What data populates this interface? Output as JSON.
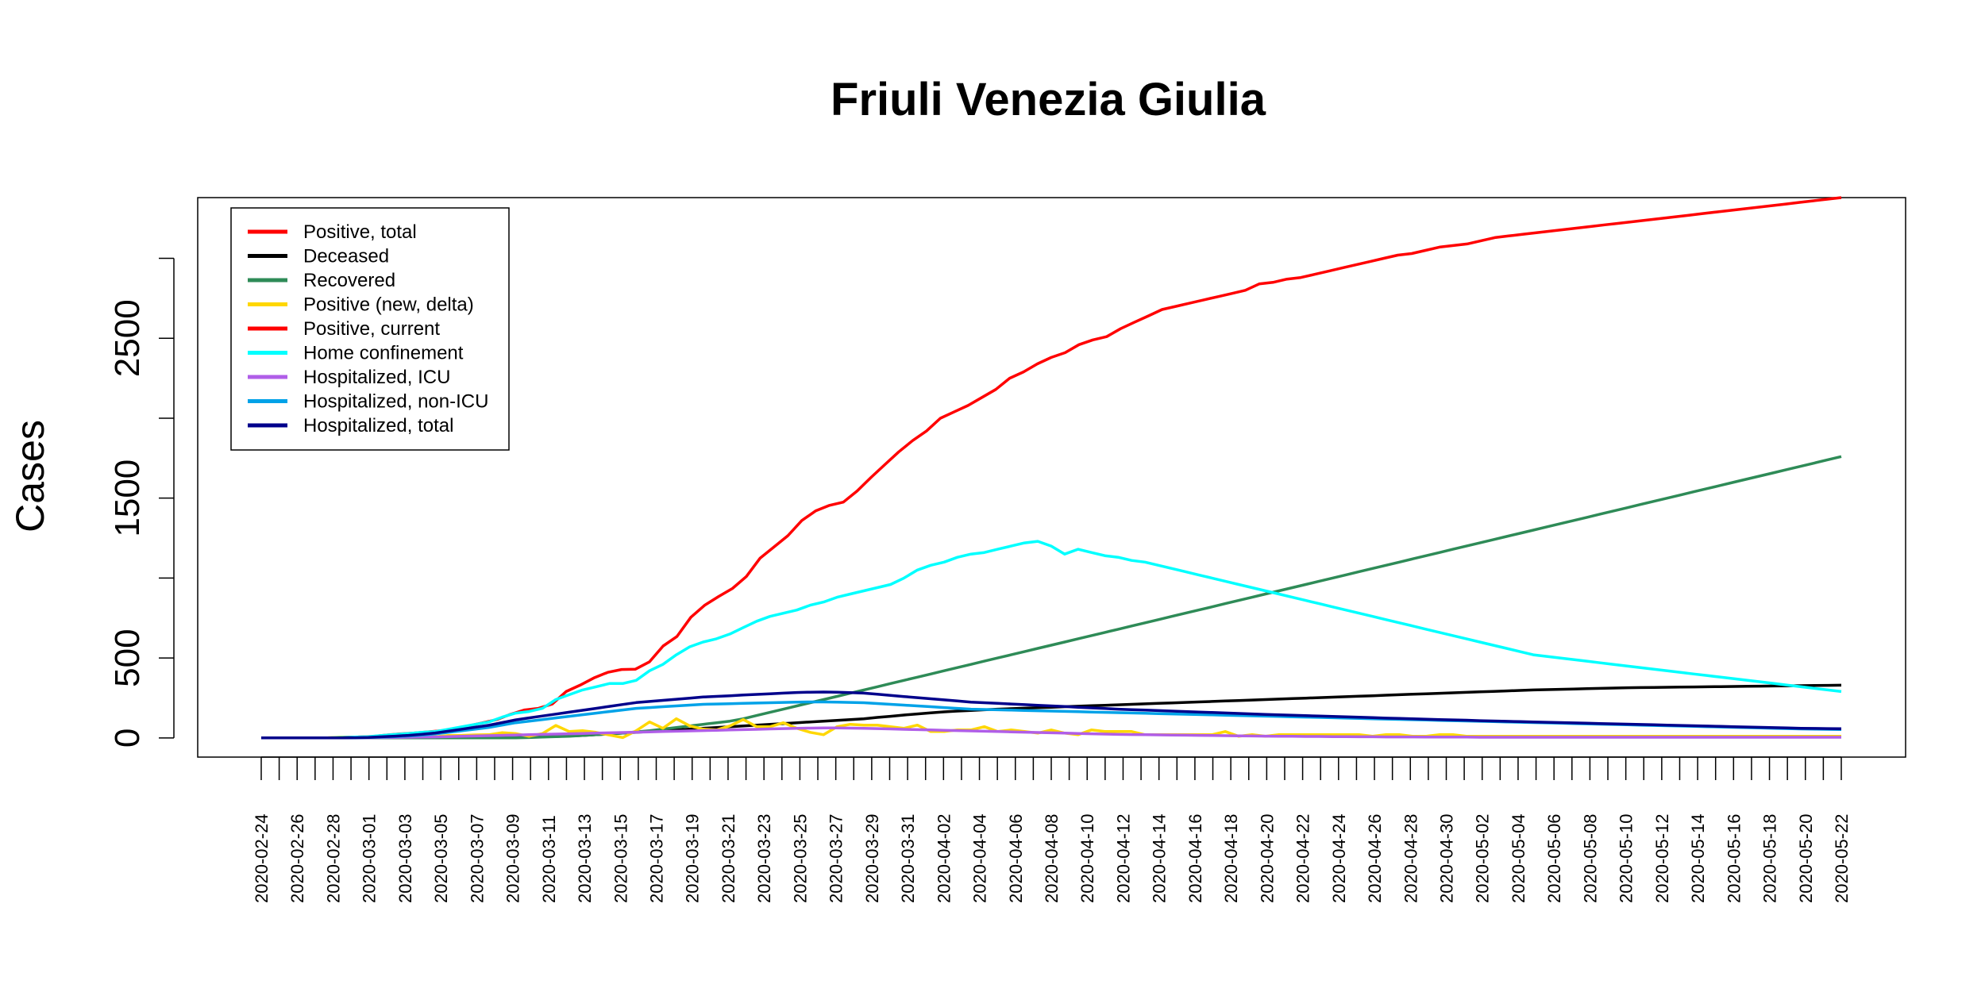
{
  "chart_data": {
    "type": "line",
    "title": "Friuli Venezia Giulia",
    "xlabel": "",
    "ylabel": "Cases",
    "ylim": [
      -120,
      3380
    ],
    "y_ticks": [
      0,
      500,
      1000,
      1500,
      2000,
      2500,
      3000
    ],
    "y_tick_labels": [
      "0",
      "500",
      "",
      "1500",
      "",
      "2500",
      ""
    ],
    "grid": false,
    "legend_position": "top-left",
    "x_start": "2020-02-24",
    "x_tick_labels": [
      "2020-02-24",
      "2020-02-26",
      "2020-02-28",
      "2020-03-01",
      "2020-03-03",
      "2020-03-05",
      "2020-03-07",
      "2020-03-09",
      "2020-03-11",
      "2020-03-13",
      "2020-03-15",
      "2020-03-17",
      "2020-03-19",
      "2020-03-21",
      "2020-03-23",
      "2020-03-25",
      "2020-03-27",
      "2020-03-29",
      "2020-03-31",
      "2020-04-02",
      "2020-04-04",
      "2020-04-06",
      "2020-04-08",
      "2020-04-10",
      "2020-04-12",
      "2020-04-14",
      "2020-04-16",
      "2020-04-18",
      "2020-04-20",
      "2020-04-22",
      "2020-04-24",
      "2020-04-26",
      "2020-04-28",
      "2020-04-30",
      "2020-05-02",
      "2020-05-04",
      "2020-05-06",
      "2020-05-08",
      "2020-05-10",
      "2020-05-12",
      "2020-05-14",
      "2020-05-16",
      "2020-05-18",
      "2020-05-20",
      "2020-05-22"
    ],
    "series": [
      {
        "name": "Positive, total",
        "color": "#ff0000",
        "values": [
          0,
          0,
          0,
          0,
          0,
          0,
          5,
          6,
          9,
          18,
          25,
          30,
          38,
          45,
          60,
          76,
          95,
          115,
          148,
          175,
          185,
          212,
          290,
          330,
          375,
          410,
          428,
          430,
          475,
          575,
          635,
          755,
          830,
          885,
          935,
          1010,
          1125,
          1195,
          1265,
          1360,
          1420,
          1455,
          1475,
          1545,
          1630,
          1710,
          1790,
          1860,
          1920,
          2000,
          2040,
          2080,
          2130,
          2180,
          2250,
          2290,
          2340,
          2380,
          2410,
          2460,
          2490,
          2510,
          2560,
          2600,
          2640,
          2680,
          2700,
          2720,
          2740,
          2760,
          2780,
          2800,
          2840,
          2850,
          2870,
          2880,
          2900,
          2920,
          2940,
          2960,
          2980,
          3000,
          3020,
          3030,
          3050,
          3070,
          3080,
          3090,
          3110,
          3130,
          3140,
          3150,
          3160,
          3170,
          3180,
          3190,
          3200,
          3210,
          3220,
          3230,
          3240,
          3250,
          3260,
          3270,
          3280,
          3290,
          3300,
          3310,
          3320,
          3330,
          3340,
          3350,
          3360,
          3370,
          3380
        ]
      },
      {
        "name": "Deceased",
        "color": "#000000",
        "values": [
          0,
          0,
          0,
          0,
          0,
          0,
          0,
          0,
          0,
          0,
          0,
          0,
          0,
          0,
          0,
          0,
          0,
          1,
          2,
          3,
          5,
          7,
          9,
          12,
          15,
          20,
          25,
          30,
          35,
          40,
          45,
          50,
          55,
          60,
          65,
          70,
          75,
          80,
          85,
          90,
          95,
          100,
          105,
          110,
          115,
          120,
          128,
          135,
          143,
          150,
          157,
          163,
          168,
          172,
          176,
          180,
          183,
          186,
          189,
          192,
          195,
          198,
          201,
          204,
          207,
          210,
          213,
          216,
          219,
          222,
          225,
          228,
          231,
          234,
          237,
          240,
          243,
          246,
          249,
          252,
          255,
          258,
          261,
          264,
          267,
          270,
          273,
          276,
          279,
          282,
          285,
          288,
          291,
          294,
          297,
          300,
          302,
          304,
          306,
          308,
          310,
          312,
          314,
          315,
          316,
          317,
          318,
          319,
          320,
          321,
          322,
          323,
          324,
          325,
          326,
          327,
          328,
          329,
          330
        ]
      },
      {
        "name": "Recovered",
        "color": "#2e8b57",
        "values": [
          0,
          0,
          0,
          0,
          0,
          0,
          0,
          0,
          0,
          0,
          0,
          0,
          0,
          0,
          0,
          0,
          0,
          0,
          0,
          0,
          2,
          5,
          8,
          10,
          15,
          20,
          25,
          30,
          38,
          45,
          55,
          65,
          75,
          85,
          95,
          105,
          120,
          140,
          160,
          180,
          200,
          220,
          240,
          260,
          280,
          300,
          320,
          340,
          360,
          380,
          400,
          420,
          440,
          460,
          480,
          500,
          520,
          540,
          560,
          580,
          600,
          620,
          640,
          660,
          680,
          700,
          720,
          740,
          760,
          780,
          800,
          820,
          840,
          860,
          880,
          900,
          920,
          940,
          960,
          980,
          1000,
          1020,
          1040,
          1060,
          1080,
          1100,
          1120,
          1140,
          1160,
          1180,
          1200,
          1220,
          1240,
          1260,
          1280,
          1300,
          1320,
          1340,
          1360,
          1380,
          1400,
          1420,
          1440,
          1460,
          1480,
          1500,
          1520,
          1540,
          1560,
          1580,
          1600,
          1620,
          1640,
          1660,
          1680,
          1700,
          1720,
          1740,
          1760
        ]
      },
      {
        "name": "Positive (new, delta)",
        "color": "#ffd700",
        "values": [
          0,
          0,
          0,
          0,
          0,
          1,
          5,
          1,
          3,
          9,
          7,
          5,
          8,
          7,
          15,
          16,
          19,
          20,
          33,
          27,
          10,
          27,
          78,
          40,
          45,
          35,
          18,
          2,
          45,
          100,
          60,
          120,
          75,
          55,
          50,
          75,
          115,
          70,
          70,
          95,
          60,
          35,
          20,
          70,
          85,
          80,
          80,
          70,
          60,
          80,
          40,
          40,
          50,
          50,
          70,
          40,
          50,
          40,
          30,
          50,
          30,
          20,
          50,
          40,
          40,
          40,
          20,
          20,
          20,
          20,
          20,
          20,
          40,
          10,
          20,
          10,
          20,
          20,
          20,
          20,
          20,
          20,
          20,
          10,
          20,
          20,
          10,
          10,
          20,
          20,
          10,
          10,
          10,
          10,
          10,
          10,
          10,
          10,
          10,
          10,
          10,
          10,
          10,
          10,
          10,
          10,
          10,
          10,
          10,
          10,
          10,
          10,
          10,
          10,
          10,
          10,
          10,
          10,
          10
        ]
      },
      {
        "name": "Positive, current",
        "color": "#ff0000",
        "values": []
      },
      {
        "name": "Home confinement",
        "color": "#00ffff",
        "values": [
          0,
          0,
          0,
          0,
          0,
          0,
          3,
          5,
          8,
          15,
          22,
          28,
          35,
          40,
          55,
          70,
          85,
          100,
          130,
          155,
          165,
          185,
          240,
          270,
          300,
          320,
          340,
          340,
          360,
          420,
          460,
          520,
          570,
          600,
          620,
          650,
          690,
          730,
          760,
          780,
          800,
          830,
          850,
          880,
          900,
          920,
          940,
          960,
          1000,
          1050,
          1080,
          1100,
          1130,
          1150,
          1160,
          1180,
          1200,
          1220,
          1230,
          1200,
          1150,
          1180,
          1160,
          1140,
          1130,
          1110,
          1100,
          1080,
          1060,
          1040,
          1020,
          1000,
          980,
          960,
          940,
          920,
          900,
          880,
          860,
          840,
          820,
          800,
          780,
          760,
          740,
          720,
          700,
          680,
          660,
          640,
          620,
          600,
          580,
          560,
          540,
          520,
          510,
          500,
          490,
          480,
          470,
          460,
          450,
          440,
          430,
          420,
          410,
          400,
          390,
          380,
          370,
          360,
          350,
          340,
          330,
          320,
          310,
          300,
          290
        ]
      },
      {
        "name": "Hospitalized, ICU",
        "color": "#b05ee8",
        "values": [
          0,
          0,
          0,
          0,
          0,
          0,
          0,
          0,
          1,
          2,
          3,
          4,
          5,
          6,
          8,
          10,
          12,
          14,
          16,
          18,
          20,
          22,
          24,
          26,
          28,
          30,
          32,
          34,
          36,
          38,
          40,
          42,
          44,
          46,
          48,
          50,
          52,
          54,
          56,
          58,
          60,
          61,
          62,
          62,
          61,
          60,
          58,
          56,
          54,
          52,
          50,
          48,
          46,
          44,
          42,
          40,
          38,
          36,
          34,
          32,
          30,
          28,
          26,
          24,
          22,
          21,
          20,
          19,
          18,
          17,
          16,
          15,
          14,
          13,
          12,
          11,
          10,
          10,
          9,
          9,
          8,
          8,
          7,
          7,
          6,
          6,
          6,
          5,
          5,
          5,
          5,
          4,
          4,
          4,
          4,
          4,
          4,
          4,
          4,
          4,
          4,
          4,
          4,
          4,
          4,
          4,
          4,
          4,
          4,
          4,
          4,
          4,
          4,
          4,
          4,
          4,
          4,
          4,
          4
        ]
      },
      {
        "name": "Hospitalized, non-ICU",
        "color": "#00a2e8",
        "values": [
          0,
          0,
          0,
          0,
          0,
          0,
          0,
          1,
          2,
          5,
          8,
          12,
          18,
          25,
          35,
          45,
          55,
          65,
          80,
          95,
          105,
          115,
          125,
          135,
          145,
          155,
          165,
          175,
          185,
          190,
          195,
          200,
          205,
          210,
          212,
          214,
          216,
          218,
          220,
          222,
          224,
          225,
          225,
          224,
          222,
          220,
          215,
          210,
          205,
          200,
          195,
          190,
          185,
          180,
          178,
          176,
          174,
          172,
          170,
          168,
          166,
          164,
          162,
          160,
          158,
          156,
          154,
          152,
          150,
          148,
          146,
          144,
          142,
          140,
          138,
          136,
          134,
          132,
          130,
          128,
          126,
          124,
          122,
          120,
          118,
          116,
          114,
          112,
          110,
          108,
          106,
          104,
          102,
          100,
          98,
          96,
          94,
          92,
          90,
          88,
          86,
          84,
          82,
          80,
          78,
          76,
          74,
          72,
          70,
          68,
          66,
          64,
          62,
          60,
          58,
          56,
          55,
          54,
          53
        ]
      },
      {
        "name": "Hospitalized, total",
        "color": "#00008b",
        "values": [
          0,
          0,
          0,
          0,
          0,
          0,
          0,
          1,
          3,
          7,
          11,
          16,
          23,
          31,
          43,
          55,
          67,
          79,
          96,
          113,
          125,
          137,
          149,
          161,
          173,
          185,
          197,
          209,
          221,
          228,
          235,
          242,
          249,
          256,
          260,
          264,
          268,
          272,
          276,
          280,
          284,
          286,
          287,
          286,
          283,
          280,
          273,
          266,
          259,
          252,
          245,
          238,
          231,
          224,
          220,
          216,
          212,
          208,
          204,
          200,
          196,
          192,
          188,
          184,
          180,
          177,
          174,
          171,
          168,
          165,
          162,
          159,
          156,
          153,
          150,
          147,
          144,
          142,
          139,
          137,
          134,
          132,
          129,
          127,
          124,
          122,
          120,
          117,
          115,
          113,
          111,
          108,
          106,
          104,
          102,
          100,
          98,
          96,
          94,
          92,
          90,
          88,
          86,
          84,
          82,
          80,
          78,
          76,
          74,
          72,
          70,
          68,
          66,
          64,
          62,
          60,
          59,
          58,
          57
        ]
      }
    ]
  }
}
